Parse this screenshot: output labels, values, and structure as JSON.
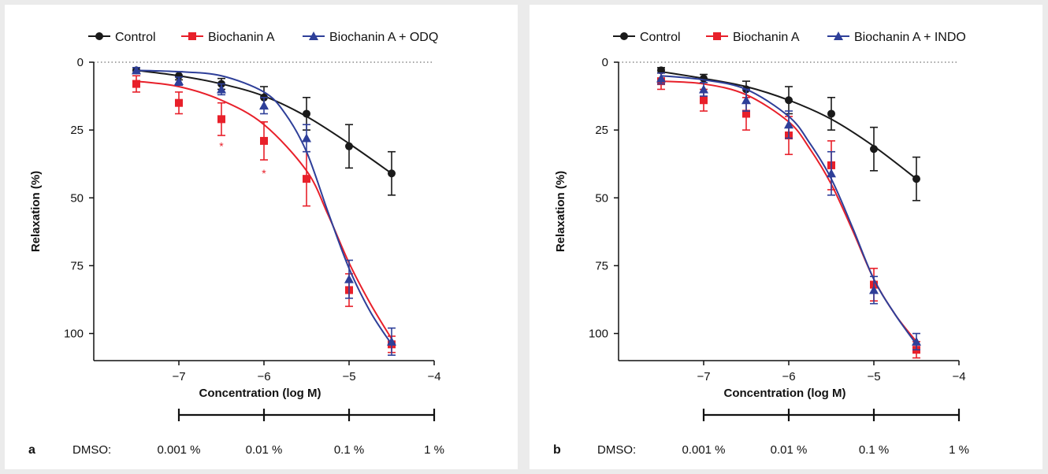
{
  "colors": {
    "control": "#1a1a1a",
    "biochanin": "#e8202a",
    "inhibitor": "#2e3f99"
  },
  "chart_data": [
    {
      "type": "line",
      "panel_letter": "a",
      "xlabel": "Concentration (log M)",
      "ylabel": "Relaxation (%)",
      "xlim": [
        -8.0,
        -4.0
      ],
      "ylim": [
        0,
        110
      ],
      "y_inverted": true,
      "x_ticks": [
        -7,
        -6,
        -5,
        -4
      ],
      "x_tick_labels": [
        "−7",
        "−6",
        "−5",
        "−4"
      ],
      "y_ticks": [
        0,
        25,
        50,
        75,
        100
      ],
      "y_tick_labels": [
        "0",
        "25",
        "50",
        "75",
        "100"
      ],
      "zero_line": "dotted",
      "legend": {
        "placement": "top"
      },
      "series": [
        {
          "name": "Control",
          "marker": "circle",
          "color": "#1a1a1a",
          "x": [
            -7.5,
            -7.0,
            -6.5,
            -6.0,
            -5.5,
            -5.0,
            -4.5
          ],
          "y": [
            3,
            5,
            8,
            13,
            19,
            31,
            41
          ],
          "err": [
            1,
            1.5,
            2,
            4,
            6,
            8,
            8
          ],
          "curve": [
            [
              -7.5,
              3
            ],
            [
              -7.0,
              5
            ],
            [
              -6.5,
              8
            ],
            [
              -6.0,
              12.5
            ],
            [
              -5.5,
              20
            ],
            [
              -5.0,
              30
            ],
            [
              -4.5,
              41
            ]
          ]
        },
        {
          "name": "Biochanin A",
          "marker": "square",
          "color": "#e8202a",
          "x": [
            -7.5,
            -7.0,
            -6.5,
            -6.0,
            -5.5,
            -5.0,
            -4.5
          ],
          "y": [
            8,
            15,
            21,
            29,
            43,
            84,
            104
          ],
          "err": [
            3,
            4,
            6,
            7,
            10,
            6,
            3
          ],
          "significant": [
            false,
            false,
            true,
            true,
            false,
            false,
            false
          ],
          "curve": [
            [
              -7.5,
              7
            ],
            [
              -7.0,
              9
            ],
            [
              -6.5,
              14
            ],
            [
              -6.0,
              23
            ],
            [
              -5.5,
              40
            ],
            [
              -5.25,
              56
            ],
            [
              -5.0,
              74
            ],
            [
              -4.75,
              89
            ],
            [
              -4.5,
              102
            ]
          ]
        },
        {
          "name": "Biochanin A + ODQ",
          "marker": "triangle",
          "color": "#2e3f99",
          "x": [
            -7.5,
            -7.0,
            -6.5,
            -6.0,
            -5.5,
            -5.0,
            -4.5
          ],
          "y": [
            3,
            7,
            10,
            16,
            28,
            80,
            103
          ],
          "err": [
            1,
            1.5,
            2,
            3,
            5,
            7,
            5
          ],
          "curve": [
            [
              -7.5,
              3
            ],
            [
              -7.0,
              3.5
            ],
            [
              -6.5,
              5
            ],
            [
              -6.0,
              11
            ],
            [
              -5.75,
              19
            ],
            [
              -5.5,
              33
            ],
            [
              -5.25,
              55
            ],
            [
              -5.0,
              76
            ],
            [
              -4.75,
              92
            ],
            [
              -4.5,
              104
            ]
          ]
        }
      ],
      "dmso": {
        "label": "DMSO:",
        "x": [
          -7,
          -6,
          -5,
          -4
        ],
        "labels": [
          "0.001 %",
          "0.01 %",
          "0.1 %",
          "1 %"
        ]
      },
      "annotations": [
        {
          "text": "*",
          "x": -6.5,
          "y": 30
        },
        {
          "text": "*",
          "x": -6.0,
          "y": 40
        }
      ]
    },
    {
      "type": "line",
      "panel_letter": "b",
      "xlabel": "Concentration (log M)",
      "ylabel": "Relaxation (%)",
      "xlim": [
        -8.0,
        -4.0
      ],
      "ylim": [
        0,
        110
      ],
      "y_inverted": true,
      "x_ticks": [
        -7,
        -6,
        -5,
        -4
      ],
      "x_tick_labels": [
        "−7",
        "−6",
        "−5",
        "−4"
      ],
      "y_ticks": [
        0,
        25,
        50,
        75,
        100
      ],
      "y_tick_labels": [
        "0",
        "25",
        "50",
        "75",
        "100"
      ],
      "zero_line": "dotted",
      "legend": {
        "placement": "top"
      },
      "series": [
        {
          "name": "Control",
          "marker": "circle",
          "color": "#1a1a1a",
          "x": [
            -7.5,
            -7.0,
            -6.5,
            -6.0,
            -5.5,
            -5.0,
            -4.5
          ],
          "y": [
            3,
            6,
            10,
            14,
            19,
            32,
            43
          ],
          "err": [
            1,
            1.5,
            3,
            5,
            6,
            8,
            8
          ],
          "curve": [
            [
              -7.5,
              3.5
            ],
            [
              -7.0,
              6
            ],
            [
              -6.5,
              9
            ],
            [
              -6.0,
              14
            ],
            [
              -5.5,
              21
            ],
            [
              -5.0,
              31
            ],
            [
              -4.5,
              43
            ]
          ]
        },
        {
          "name": "Biochanin A",
          "marker": "square",
          "color": "#e8202a",
          "x": [
            -7.5,
            -7.0,
            -6.5,
            -6.0,
            -5.5,
            -5.0,
            -4.5
          ],
          "y": [
            7,
            14,
            19,
            27,
            38,
            82,
            106
          ],
          "err": [
            3,
            4,
            6,
            7,
            9,
            6,
            3
          ],
          "curve": [
            [
              -7.5,
              7
            ],
            [
              -7.0,
              8
            ],
            [
              -6.5,
              12
            ],
            [
              -6.0,
              22
            ],
            [
              -5.75,
              32
            ],
            [
              -5.5,
              45
            ],
            [
              -5.25,
              62
            ],
            [
              -5.0,
              80
            ],
            [
              -4.75,
              93
            ],
            [
              -4.5,
              103
            ]
          ]
        },
        {
          "name": "Biochanin A + INDO",
          "marker": "triangle",
          "color": "#2e3f99",
          "x": [
            -7.5,
            -7.0,
            -6.5,
            -6.0,
            -5.5,
            -5.0,
            -4.5
          ],
          "y": [
            6,
            10,
            14,
            23,
            41,
            84,
            103
          ],
          "err": [
            2,
            2.5,
            4,
            5,
            8,
            5,
            3
          ],
          "curve": [
            [
              -7.5,
              5
            ],
            [
              -7.0,
              6.5
            ],
            [
              -6.5,
              10
            ],
            [
              -6.0,
              20
            ],
            [
              -5.75,
              30
            ],
            [
              -5.5,
              43
            ],
            [
              -5.25,
              61
            ],
            [
              -5.0,
              80
            ],
            [
              -4.75,
              93
            ],
            [
              -4.5,
              104
            ]
          ]
        }
      ],
      "dmso": {
        "label": "DMSO:",
        "x": [
          -7,
          -6,
          -5,
          -4
        ],
        "labels": [
          "0.001 %",
          "0.01 %",
          "0.1 %",
          "1 %"
        ]
      }
    }
  ]
}
